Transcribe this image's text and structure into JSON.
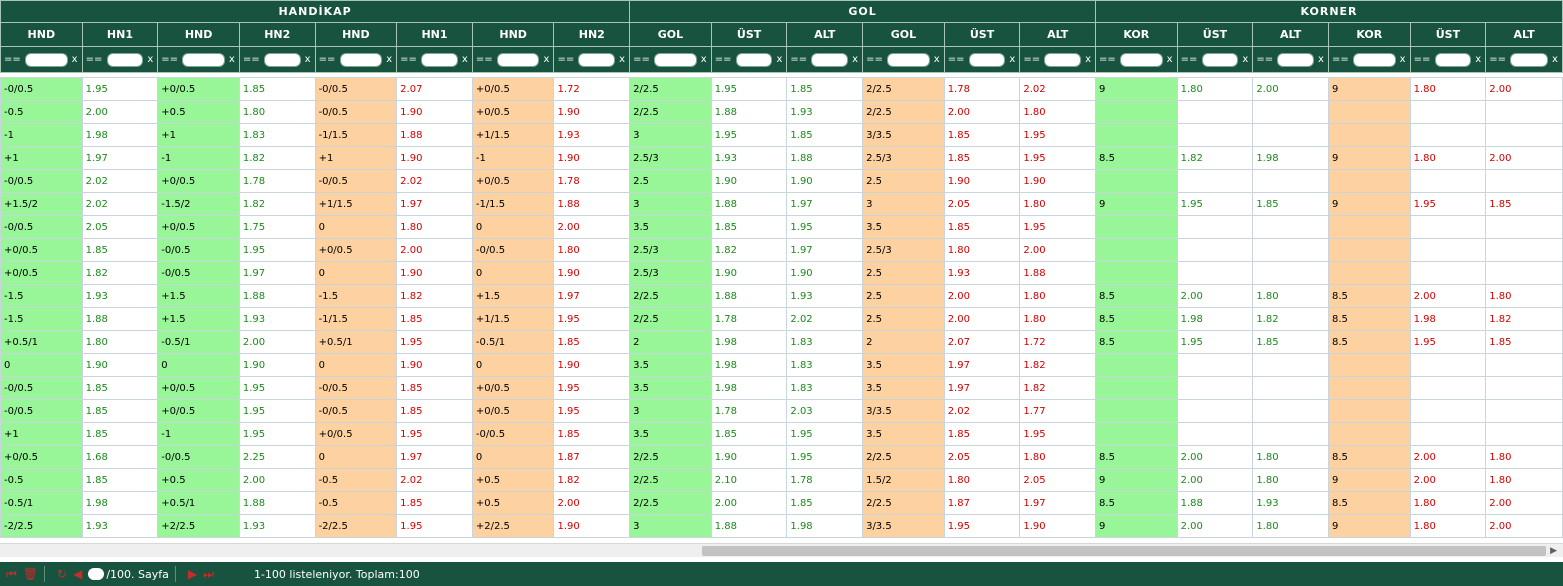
{
  "groups": [
    {
      "label": "HANDİKAP",
      "span": 8
    },
    {
      "label": "GOL",
      "span": 6
    },
    {
      "label": "KORNER",
      "span": 6
    }
  ],
  "columns": [
    {
      "label": "HND"
    },
    {
      "label": "HN1"
    },
    {
      "label": "HND"
    },
    {
      "label": "HN2"
    },
    {
      "label": "HND"
    },
    {
      "label": "HN1"
    },
    {
      "label": "HND"
    },
    {
      "label": "HN2"
    },
    {
      "label": "GOL"
    },
    {
      "label": "ÜST"
    },
    {
      "label": "ALT"
    },
    {
      "label": "GOL"
    },
    {
      "label": "ÜST"
    },
    {
      "label": "ALT"
    },
    {
      "label": "KOR"
    },
    {
      "label": "ÜST"
    },
    {
      "label": "ALT"
    },
    {
      "label": "KOR"
    },
    {
      "label": "ÜST"
    },
    {
      "label": "ALT"
    }
  ],
  "filter": {
    "eq": "==",
    "clear": "x"
  },
  "rows": [
    [
      "-0/0.5",
      "1.95",
      "+0/0.5",
      "1.85",
      "-0/0.5",
      "2.07",
      "+0/0.5",
      "1.72",
      "2/2.5",
      "1.95",
      "1.85",
      "2/2.5",
      "1.78",
      "2.02",
      "9",
      "1.80",
      "2.00",
      "9",
      "1.80",
      "2.00"
    ],
    [
      "-0.5",
      "2.00",
      "+0.5",
      "1.80",
      "-0/0.5",
      "1.90",
      "+0/0.5",
      "1.90",
      "2/2.5",
      "1.88",
      "1.93",
      "2/2.5",
      "2.00",
      "1.80",
      "",
      "",
      "",
      "",
      "",
      ""
    ],
    [
      "-1",
      "1.98",
      "+1",
      "1.83",
      "-1/1.5",
      "1.88",
      "+1/1.5",
      "1.93",
      "3",
      "1.95",
      "1.85",
      "3/3.5",
      "1.85",
      "1.95",
      "",
      "",
      "",
      "",
      "",
      ""
    ],
    [
      "+1",
      "1.97",
      "-1",
      "1.82",
      "+1",
      "1.90",
      "-1",
      "1.90",
      "2.5/3",
      "1.93",
      "1.88",
      "2.5/3",
      "1.85",
      "1.95",
      "8.5",
      "1.82",
      "1.98",
      "9",
      "1.80",
      "2.00"
    ],
    [
      "-0/0.5",
      "2.02",
      "+0/0.5",
      "1.78",
      "-0/0.5",
      "2.02",
      "+0/0.5",
      "1.78",
      "2.5",
      "1.90",
      "1.90",
      "2.5",
      "1.90",
      "1.90",
      "",
      "",
      "",
      "",
      "",
      ""
    ],
    [
      "+1.5/2",
      "2.02",
      "-1.5/2",
      "1.82",
      "+1/1.5",
      "1.97",
      "-1/1.5",
      "1.88",
      "3",
      "1.88",
      "1.97",
      "3",
      "2.05",
      "1.80",
      "9",
      "1.95",
      "1.85",
      "9",
      "1.95",
      "1.85"
    ],
    [
      "-0/0.5",
      "2.05",
      "+0/0.5",
      "1.75",
      "0",
      "1.80",
      "0",
      "2.00",
      "3.5",
      "1.85",
      "1.95",
      "3.5",
      "1.85",
      "1.95",
      "",
      "",
      "",
      "",
      "",
      ""
    ],
    [
      "+0/0.5",
      "1.85",
      "-0/0.5",
      "1.95",
      "+0/0.5",
      "2.00",
      "-0/0.5",
      "1.80",
      "2.5/3",
      "1.82",
      "1.97",
      "2.5/3",
      "1.80",
      "2.00",
      "",
      "",
      "",
      "",
      "",
      ""
    ],
    [
      "+0/0.5",
      "1.82",
      "-0/0.5",
      "1.97",
      "0",
      "1.90",
      "0",
      "1.90",
      "2.5/3",
      "1.90",
      "1.90",
      "2.5",
      "1.93",
      "1.88",
      "",
      "",
      "",
      "",
      "",
      ""
    ],
    [
      "-1.5",
      "1.93",
      "+1.5",
      "1.88",
      "-1.5",
      "1.82",
      "+1.5",
      "1.97",
      "2/2.5",
      "1.88",
      "1.93",
      "2.5",
      "2.00",
      "1.80",
      "8.5",
      "2.00",
      "1.80",
      "8.5",
      "2.00",
      "1.80"
    ],
    [
      "-1.5",
      "1.88",
      "+1.5",
      "1.93",
      "-1/1.5",
      "1.85",
      "+1/1.5",
      "1.95",
      "2/2.5",
      "1.78",
      "2.02",
      "2.5",
      "2.00",
      "1.80",
      "8.5",
      "1.98",
      "1.82",
      "8.5",
      "1.98",
      "1.82"
    ],
    [
      "+0.5/1",
      "1.80",
      "-0.5/1",
      "2.00",
      "+0.5/1",
      "1.95",
      "-0.5/1",
      "1.85",
      "2",
      "1.98",
      "1.83",
      "2",
      "2.07",
      "1.72",
      "8.5",
      "1.95",
      "1.85",
      "8.5",
      "1.95",
      "1.85"
    ],
    [
      "0",
      "1.90",
      "0",
      "1.90",
      "0",
      "1.90",
      "0",
      "1.90",
      "3.5",
      "1.98",
      "1.83",
      "3.5",
      "1.97",
      "1.82",
      "",
      "",
      "",
      "",
      "",
      ""
    ],
    [
      "-0/0.5",
      "1.85",
      "+0/0.5",
      "1.95",
      "-0/0.5",
      "1.85",
      "+0/0.5",
      "1.95",
      "3.5",
      "1.98",
      "1.83",
      "3.5",
      "1.97",
      "1.82",
      "",
      "",
      "",
      "",
      "",
      ""
    ],
    [
      "-0/0.5",
      "1.85",
      "+0/0.5",
      "1.95",
      "-0/0.5",
      "1.85",
      "+0/0.5",
      "1.95",
      "3",
      "1.78",
      "2.03",
      "3/3.5",
      "2.02",
      "1.77",
      "",
      "",
      "",
      "",
      "",
      ""
    ],
    [
      "+1",
      "1.85",
      "-1",
      "1.95",
      "+0/0.5",
      "1.95",
      "-0/0.5",
      "1.85",
      "3.5",
      "1.85",
      "1.95",
      "3.5",
      "1.85",
      "1.95",
      "",
      "",
      "",
      "",
      "",
      ""
    ],
    [
      "+0/0.5",
      "1.68",
      "-0/0.5",
      "2.25",
      "0",
      "1.97",
      "0",
      "1.87",
      "2/2.5",
      "1.90",
      "1.95",
      "2/2.5",
      "2.05",
      "1.80",
      "8.5",
      "2.00",
      "1.80",
      "8.5",
      "2.00",
      "1.80"
    ],
    [
      "-0.5",
      "1.85",
      "+0.5",
      "2.00",
      "-0.5",
      "2.02",
      "+0.5",
      "1.82",
      "2/2.5",
      "2.10",
      "1.78",
      "1.5/2",
      "1.80",
      "2.05",
      "9",
      "2.00",
      "1.80",
      "9",
      "2.00",
      "1.80"
    ],
    [
      "-0.5/1",
      "1.98",
      "+0.5/1",
      "1.88",
      "-0.5",
      "1.85",
      "+0.5",
      "2.00",
      "2/2.5",
      "2.00",
      "1.85",
      "2/2.5",
      "1.87",
      "1.97",
      "8.5",
      "1.88",
      "1.93",
      "8.5",
      "1.80",
      "2.00"
    ],
    [
      "-2/2.5",
      "1.93",
      "+2/2.5",
      "1.93",
      "-2/2.5",
      "1.95",
      "+2/2.5",
      "1.90",
      "3",
      "1.88",
      "1.98",
      "3/3.5",
      "1.95",
      "1.90",
      "9",
      "2.00",
      "1.80",
      "9",
      "1.80",
      "2.00"
    ]
  ],
  "footer": {
    "page_label": "/100. Sayfa",
    "status": "1-100 listeleniyor. Toplam:100"
  },
  "colors": {
    "header_bg": "#17533f",
    "cell_green": "#98f598",
    "cell_orange": "#fed2a0",
    "text_green": "#1a8a1a",
    "text_red": "#d00000"
  }
}
